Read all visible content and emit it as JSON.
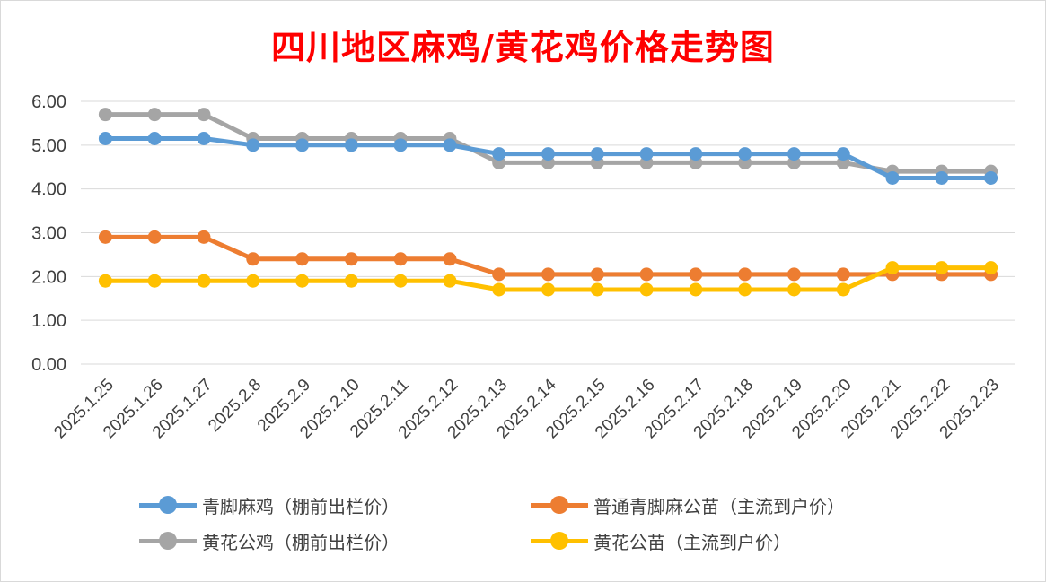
{
  "chart_data": {
    "type": "line",
    "title": "四川地区麻鸡/黄花鸡价格走势图",
    "xlabel": "",
    "ylabel": "",
    "ylim": [
      0,
      6
    ],
    "yticks": [
      "0.00",
      "1.00",
      "2.00",
      "3.00",
      "4.00",
      "5.00",
      "6.00"
    ],
    "grid": true,
    "legend_position": "bottom",
    "categories": [
      "2025.1.25",
      "2025.1.26",
      "2025.1.27",
      "2025.2.8",
      "2025.2.9",
      "2025.2.10",
      "2025.2.11",
      "2025.2.12",
      "2025.2.13",
      "2025.2.14",
      "2025.2.15",
      "2025.2.16",
      "2025.2.17",
      "2025.2.18",
      "2025.2.19",
      "2025.2.20",
      "2025.2.21",
      "2025.2.22",
      "2025.2.23"
    ],
    "series": [
      {
        "name": "青脚麻鸡（棚前出栏价）",
        "color": "#5b9bd5",
        "values": [
          5.15,
          5.15,
          5.15,
          5.0,
          5.0,
          5.0,
          5.0,
          5.0,
          4.8,
          4.8,
          4.8,
          4.8,
          4.8,
          4.8,
          4.8,
          4.8,
          4.25,
          4.25,
          4.25
        ]
      },
      {
        "name": "普通青脚麻公苗（主流到户价）",
        "color": "#ed7d31",
        "values": [
          2.9,
          2.9,
          2.9,
          2.4,
          2.4,
          2.4,
          2.4,
          2.4,
          2.05,
          2.05,
          2.05,
          2.05,
          2.05,
          2.05,
          2.05,
          2.05,
          2.05,
          2.05,
          2.05
        ]
      },
      {
        "name": "黄花公鸡（棚前出栏价）",
        "color": "#a5a5a5",
        "values": [
          5.7,
          5.7,
          5.7,
          5.15,
          5.15,
          5.15,
          5.15,
          5.15,
          4.6,
          4.6,
          4.6,
          4.6,
          4.6,
          4.6,
          4.6,
          4.6,
          4.4,
          4.4,
          4.4
        ]
      },
      {
        "name": "黄花公苗（主流到户价）",
        "color": "#ffc000",
        "values": [
          1.9,
          1.9,
          1.9,
          1.9,
          1.9,
          1.9,
          1.9,
          1.9,
          1.7,
          1.7,
          1.7,
          1.7,
          1.7,
          1.7,
          1.7,
          1.7,
          2.2,
          2.2,
          2.2
        ]
      }
    ]
  }
}
